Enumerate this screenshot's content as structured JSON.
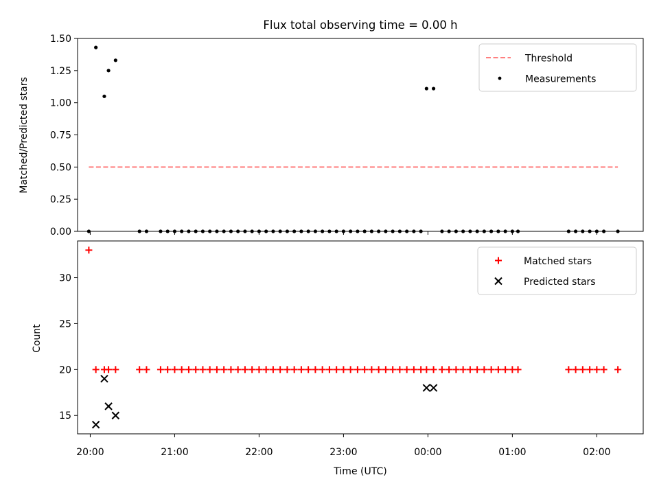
{
  "chart_data": [
    {
      "type": "scatter",
      "title": "Flux total observing time = 0.00 h",
      "xlabel": "",
      "ylabel": "Matched/Predicted stars",
      "ylim": [
        0,
        1.5
      ],
      "xlim": [
        "19:51",
        "02:33"
      ],
      "y_ticks": [
        "0.00",
        "0.25",
        "0.50",
        "0.75",
        "1.00",
        "1.25",
        "1.50"
      ],
      "x_ticks": [
        "20:00",
        "21:00",
        "22:00",
        "23:00",
        "00:00",
        "01:00",
        "02:00"
      ],
      "grid": false,
      "legend": "top-right",
      "series": [
        {
          "name": "Threshold",
          "style": "dashed-line",
          "color": "#ff7f7f",
          "x": [
            "19:59",
            "02:15"
          ],
          "values": [
            0.5,
            0.5
          ]
        },
        {
          "name": "Measurements",
          "style": "dot",
          "color": "#000000",
          "x": [
            "19:59",
            "20:04",
            "20:10",
            "20:13",
            "20:18",
            "20:35",
            "20:40",
            "20:50",
            "20:55",
            "21:00",
            "21:05",
            "21:10",
            "21:15",
            "21:20",
            "21:25",
            "21:30",
            "21:35",
            "21:40",
            "21:45",
            "21:50",
            "21:55",
            "22:00",
            "22:05",
            "22:10",
            "22:15",
            "22:20",
            "22:25",
            "22:30",
            "22:35",
            "22:40",
            "22:45",
            "22:50",
            "22:55",
            "23:00",
            "23:05",
            "23:10",
            "23:15",
            "23:20",
            "23:25",
            "23:30",
            "23:35",
            "23:40",
            "23:45",
            "23:50",
            "23:55",
            "23:59",
            "00:04",
            "00:10",
            "00:15",
            "00:20",
            "00:25",
            "00:30",
            "00:35",
            "00:40",
            "00:45",
            "00:50",
            "00:55",
            "01:00",
            "01:04",
            "01:40",
            "01:45",
            "01:50",
            "01:55",
            "02:00",
            "02:05",
            "02:15"
          ],
          "values": [
            0,
            1.43,
            1.05,
            1.25,
            1.33,
            0,
            0,
            0,
            0,
            0,
            0,
            0,
            0,
            0,
            0,
            0,
            0,
            0,
            0,
            0,
            0,
            0,
            0,
            0,
            0,
            0,
            0,
            0,
            0,
            0,
            0,
            0,
            0,
            0,
            0,
            0,
            0,
            0,
            0,
            0,
            0,
            0,
            0,
            0,
            0,
            1.11,
            1.11,
            0,
            0,
            0,
            0,
            0,
            0,
            0,
            0,
            0,
            0,
            0,
            0,
            0,
            0,
            0,
            0,
            0,
            0,
            0
          ]
        }
      ]
    },
    {
      "type": "scatter",
      "title": "",
      "xlabel": "Time (UTC)",
      "ylabel": "Count",
      "ylim": [
        13,
        34
      ],
      "xlim": [
        "19:51",
        "02:33"
      ],
      "y_ticks": [
        "15",
        "20",
        "25",
        "30"
      ],
      "x_ticks": [
        "20:00",
        "21:00",
        "22:00",
        "23:00",
        "00:00",
        "01:00",
        "02:00"
      ],
      "grid": false,
      "legend": "top-right",
      "series": [
        {
          "name": "Matched stars",
          "style": "plus",
          "color": "#ff0000",
          "x": [
            "19:59",
            "20:04",
            "20:10",
            "20:13",
            "20:18",
            "20:35",
            "20:40",
            "20:50",
            "20:55",
            "21:00",
            "21:05",
            "21:10",
            "21:15",
            "21:20",
            "21:25",
            "21:30",
            "21:35",
            "21:40",
            "21:45",
            "21:50",
            "21:55",
            "22:00",
            "22:05",
            "22:10",
            "22:15",
            "22:20",
            "22:25",
            "22:30",
            "22:35",
            "22:40",
            "22:45",
            "22:50",
            "22:55",
            "23:00",
            "23:05",
            "23:10",
            "23:15",
            "23:20",
            "23:25",
            "23:30",
            "23:35",
            "23:40",
            "23:45",
            "23:50",
            "23:55",
            "23:59",
            "00:04",
            "00:10",
            "00:15",
            "00:20",
            "00:25",
            "00:30",
            "00:35",
            "00:40",
            "00:45",
            "00:50",
            "00:55",
            "01:00",
            "01:04",
            "01:40",
            "01:45",
            "01:50",
            "01:55",
            "02:00",
            "02:05",
            "02:15"
          ],
          "values": [
            33,
            20,
            20,
            20,
            20,
            20,
            20,
            20,
            20,
            20,
            20,
            20,
            20,
            20,
            20,
            20,
            20,
            20,
            20,
            20,
            20,
            20,
            20,
            20,
            20,
            20,
            20,
            20,
            20,
            20,
            20,
            20,
            20,
            20,
            20,
            20,
            20,
            20,
            20,
            20,
            20,
            20,
            20,
            20,
            20,
            20,
            20,
            20,
            20,
            20,
            20,
            20,
            20,
            20,
            20,
            20,
            20,
            20,
            20,
            20,
            20,
            20,
            20,
            20,
            20,
            20
          ]
        },
        {
          "name": "Predicted stars",
          "style": "cross",
          "color": "#000000",
          "x": [
            "20:04",
            "20:10",
            "20:13",
            "20:18",
            "23:59",
            "00:04"
          ],
          "values": [
            14,
            19,
            16,
            15,
            18,
            18
          ]
        }
      ]
    }
  ]
}
